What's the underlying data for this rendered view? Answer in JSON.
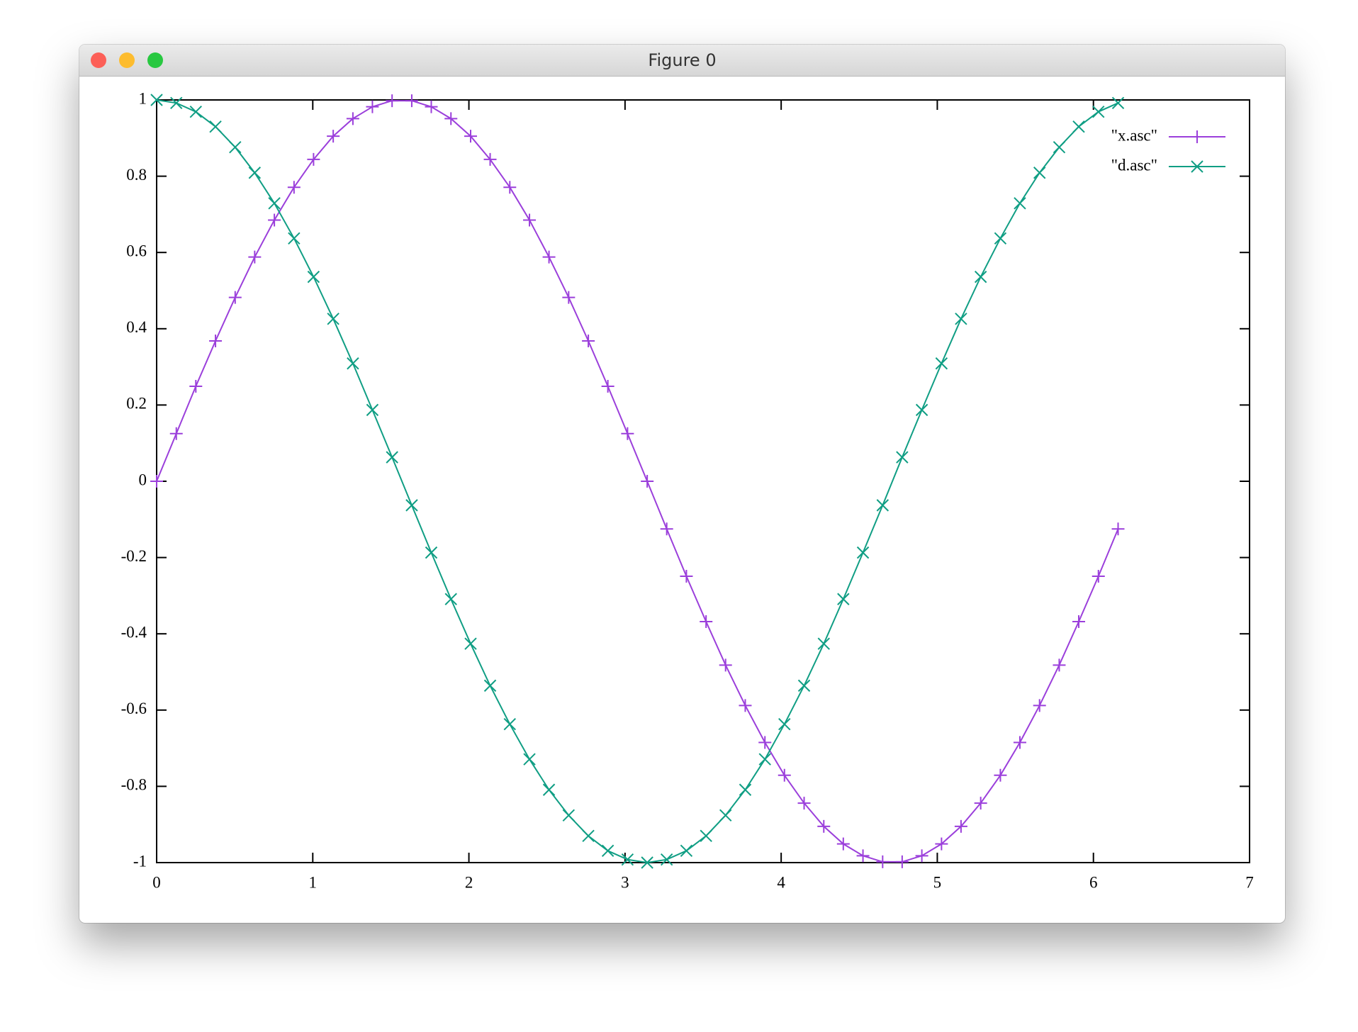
{
  "window": {
    "title": "Figure 0"
  },
  "chart_data": {
    "type": "line",
    "x": [
      0,
      0.126,
      0.251,
      0.377,
      0.503,
      0.628,
      0.754,
      0.88,
      1.005,
      1.131,
      1.257,
      1.382,
      1.508,
      1.634,
      1.759,
      1.885,
      2.011,
      2.136,
      2.262,
      2.388,
      2.513,
      2.639,
      2.765,
      2.89,
      3.016,
      3.142,
      3.267,
      3.393,
      3.519,
      3.644,
      3.77,
      3.896,
      4.021,
      4.147,
      4.273,
      4.398,
      4.524,
      4.65,
      4.775,
      4.901,
      5.027,
      5.152,
      5.278,
      5.404,
      5.529,
      5.655,
      5.781,
      5.906,
      6.032,
      6.158
    ],
    "series": [
      {
        "name": "\"x.asc\"",
        "color": "#9b3fdb",
        "marker": "plus",
        "values": [
          0,
          0.125,
          0.249,
          0.368,
          0.482,
          0.588,
          0.685,
          0.771,
          0.844,
          0.905,
          0.951,
          0.982,
          0.998,
          0.998,
          0.982,
          0.951,
          0.905,
          0.844,
          0.771,
          0.685,
          0.588,
          0.482,
          0.368,
          0.249,
          0.125,
          0,
          -0.125,
          -0.249,
          -0.368,
          -0.482,
          -0.588,
          -0.685,
          -0.771,
          -0.844,
          -0.905,
          -0.951,
          -0.982,
          -0.998,
          -0.998,
          -0.982,
          -0.951,
          -0.905,
          -0.844,
          -0.771,
          -0.685,
          -0.588,
          -0.482,
          -0.368,
          -0.249,
          -0.125
        ]
      },
      {
        "name": "\"d.asc\"",
        "color": "#109e84",
        "marker": "cross",
        "values": [
          1,
          0.992,
          0.969,
          0.93,
          0.876,
          0.809,
          0.729,
          0.637,
          0.536,
          0.426,
          0.309,
          0.187,
          0.063,
          -0.063,
          -0.187,
          -0.309,
          -0.426,
          -0.536,
          -0.637,
          -0.729,
          -0.809,
          -0.876,
          -0.93,
          -0.969,
          -0.992,
          -1,
          -0.992,
          -0.969,
          -0.93,
          -0.876,
          -0.809,
          -0.729,
          -0.637,
          -0.536,
          -0.426,
          -0.309,
          -0.187,
          -0.063,
          0.063,
          0.187,
          0.309,
          0.426,
          0.536,
          0.637,
          0.729,
          0.809,
          0.876,
          0.93,
          0.969,
          0.992
        ]
      }
    ],
    "xlim": [
      0,
      7
    ],
    "xticks": [
      0,
      1,
      2,
      3,
      4,
      5,
      6,
      7
    ],
    "ylim": [
      -1,
      1
    ],
    "yticks": [
      -1,
      -0.8,
      -0.6,
      -0.4,
      -0.2,
      0,
      0.2,
      0.4,
      0.6,
      0.8,
      1
    ],
    "grid": false,
    "legend": "top-right"
  }
}
